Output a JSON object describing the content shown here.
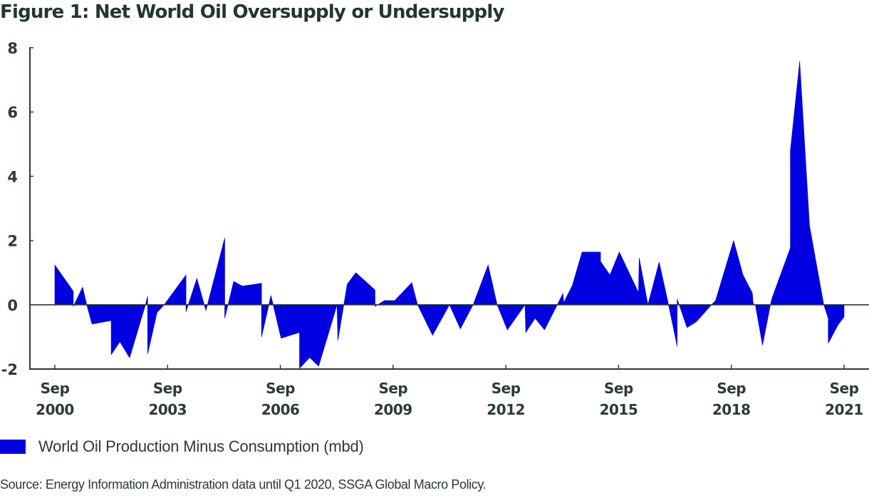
{
  "title": "Figure 1: Net World Oil Oversupply or Undersupply",
  "legend": {
    "label": "World Oil Production Minus Consumption (mbd)",
    "color": "#0000e0"
  },
  "source": "Source: Energy Information Administration data until Q1 2020, SSGA Global Macro Policy.",
  "chart_data": {
    "type": "area",
    "title": "Figure 1: Net World Oil Oversupply or Undersupply",
    "xlabel": "",
    "ylabel": "",
    "ylim": [
      -2,
      8
    ],
    "xlim": [
      2000.67,
      2021.67
    ],
    "yticks": [
      -2,
      0,
      2,
      4,
      6,
      8
    ],
    "ytick_labels": [
      "-2",
      "0",
      "2",
      "4",
      "6",
      "8"
    ],
    "xticks": [
      2000.67,
      2003.67,
      2006.67,
      2009.67,
      2012.67,
      2015.67,
      2018.67,
      2021.67
    ],
    "xtick_labels": [
      [
        "Sep",
        "2000"
      ],
      [
        "Sep",
        "2003"
      ],
      [
        "Sep",
        "2006"
      ],
      [
        "Sep",
        "2009"
      ],
      [
        "Sep",
        "2012"
      ],
      [
        "Sep",
        "2015"
      ],
      [
        "Sep",
        "2018"
      ],
      [
        "Sep",
        "2021"
      ]
    ],
    "grid": false,
    "legend_position": "bottom-left",
    "fill_color": "#0000e0",
    "axis_color": "#2b3b35",
    "series": [
      {
        "name": "World Oil Production Minus Consumption (mbd)",
        "points": [
          [
            2000.67,
            0.0
          ],
          [
            2000.67,
            1.24
          ],
          [
            2001.16,
            0.42
          ],
          [
            2001.16,
            -0.05
          ],
          [
            2001.41,
            0.55
          ],
          [
            2001.52,
            0.0
          ],
          [
            2001.66,
            -0.6
          ],
          [
            2002.17,
            -0.49
          ],
          [
            2002.17,
            -1.55
          ],
          [
            2002.4,
            -1.15
          ],
          [
            2002.66,
            -1.65
          ],
          [
            2003.08,
            0.0
          ],
          [
            2003.14,
            0.27
          ],
          [
            2003.14,
            -1.53
          ],
          [
            2003.39,
            -0.24
          ],
          [
            2003.58,
            0.0
          ],
          [
            2004.16,
            0.93
          ],
          [
            2004.16,
            -0.22
          ],
          [
            2004.45,
            0.82
          ],
          [
            2004.69,
            -0.18
          ],
          [
            2005.19,
            2.08
          ],
          [
            2005.19,
            -0.42
          ],
          [
            2005.43,
            0.73
          ],
          [
            2005.66,
            0.58
          ],
          [
            2006.17,
            0.67
          ],
          [
            2006.17,
            -1.0
          ],
          [
            2006.42,
            0.29
          ],
          [
            2006.69,
            -1.04
          ],
          [
            2007.18,
            -0.86
          ],
          [
            2007.18,
            -1.98
          ],
          [
            2007.45,
            -1.64
          ],
          [
            2007.69,
            -1.91
          ],
          [
            2008.18,
            0.0
          ],
          [
            2008.2,
            -1.11
          ],
          [
            2008.45,
            0.64
          ],
          [
            2008.68,
            1.0
          ],
          [
            2009.19,
            0.46
          ],
          [
            2009.19,
            -0.05
          ],
          [
            2009.44,
            0.13
          ],
          [
            2009.71,
            0.13
          ],
          [
            2010.17,
            0.69
          ],
          [
            2010.32,
            0.0
          ],
          [
            2010.72,
            -0.95
          ],
          [
            2011.17,
            0.0
          ],
          [
            2011.46,
            -0.75
          ],
          [
            2011.8,
            0.0
          ],
          [
            2012.2,
            1.24
          ],
          [
            2012.44,
            0.0
          ],
          [
            2012.71,
            -0.78
          ],
          [
            2013.18,
            0.0
          ],
          [
            2013.2,
            -0.86
          ],
          [
            2013.45,
            -0.42
          ],
          [
            2013.7,
            -0.78
          ],
          [
            2014.04,
            0.0
          ],
          [
            2014.19,
            0.35
          ],
          [
            2014.21,
            0.07
          ],
          [
            2014.44,
            0.6
          ],
          [
            2014.7,
            1.64
          ],
          [
            2015.19,
            1.64
          ],
          [
            2015.19,
            1.35
          ],
          [
            2015.44,
            0.93
          ],
          [
            2015.69,
            1.64
          ],
          [
            2016.2,
            0.38
          ],
          [
            2016.22,
            1.46
          ],
          [
            2016.45,
            0.0
          ],
          [
            2016.75,
            1.33
          ],
          [
            2017.0,
            0.0
          ],
          [
            2017.23,
            -1.29
          ],
          [
            2017.23,
            0.18
          ],
          [
            2017.49,
            -0.71
          ],
          [
            2017.74,
            -0.53
          ],
          [
            2018.14,
            0.0
          ],
          [
            2018.25,
            0.13
          ],
          [
            2018.73,
            2.0
          ],
          [
            2018.98,
            0.93
          ],
          [
            2019.23,
            0.36
          ],
          [
            2019.25,
            0.04
          ],
          [
            2019.31,
            0.0
          ],
          [
            2019.5,
            -1.26
          ],
          [
            2019.71,
            0.0
          ],
          [
            2019.75,
            0.2
          ],
          [
            2020.24,
            1.77
          ],
          [
            2020.24,
            4.79
          ],
          [
            2020.49,
            7.58
          ],
          [
            2020.75,
            2.46
          ],
          [
            2021.13,
            0.0
          ],
          [
            2021.25,
            -0.42
          ],
          [
            2021.25,
            -1.2
          ],
          [
            2021.51,
            -0.62
          ],
          [
            2021.67,
            -0.38
          ],
          [
            2021.67,
            0.0
          ]
        ]
      }
    ]
  }
}
